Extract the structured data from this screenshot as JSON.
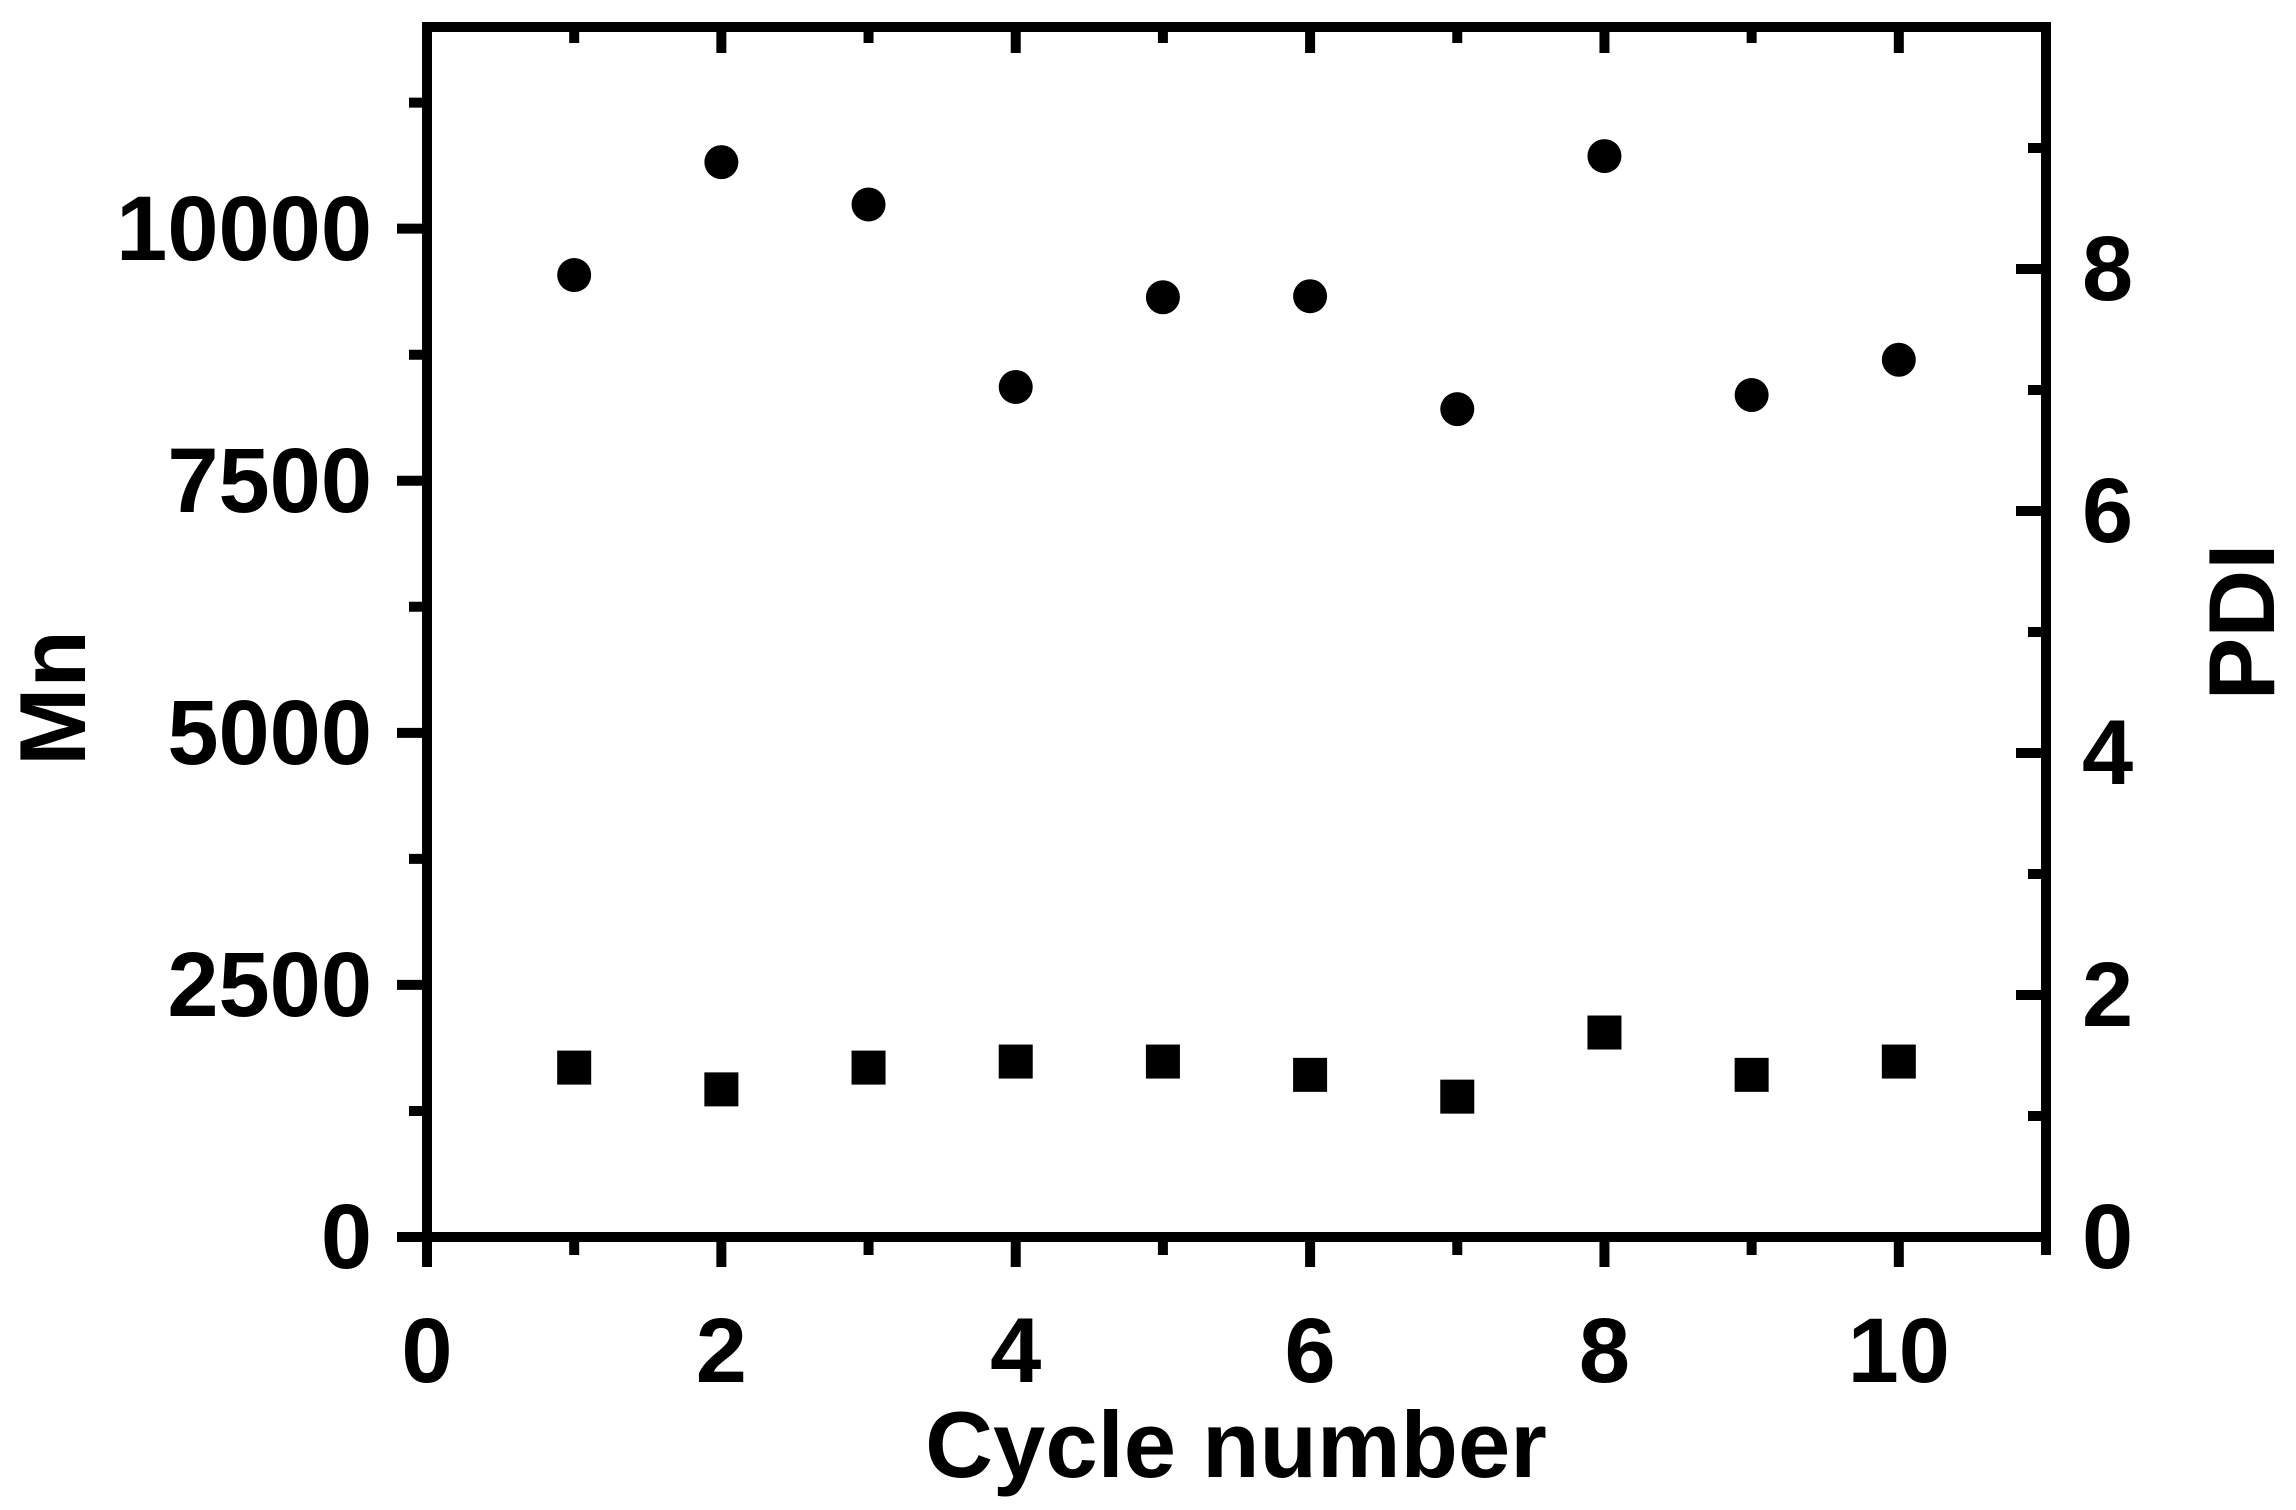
{
  "chart_data": {
    "type": "scatter",
    "title": "",
    "xlabel": "Cycle number",
    "ylabel_left": "Mn",
    "ylabel_right": "PDI",
    "grid": false,
    "legend": "none",
    "background_color": "#ffffff",
    "marker_color": "#000000",
    "axis_color": "#000000",
    "xlim": [
      0,
      11
    ],
    "ylim_left": [
      0,
      12000
    ],
    "ylim_right": [
      0,
      10
    ],
    "xticks_major": [
      0,
      2,
      4,
      6,
      8,
      10
    ],
    "xtick_labels": [
      "0",
      "2",
      "4",
      "6",
      "8",
      "10"
    ],
    "xticks_minor": [
      1,
      3,
      5,
      7,
      9,
      11
    ],
    "yticks_left_major": [
      0,
      2500,
      5000,
      7500,
      10000
    ],
    "ytick_labels_left": [
      "0",
      "2500",
      "5000",
      "7500",
      "10000"
    ],
    "yticks_left_minor": [
      1250,
      3750,
      6250,
      8750,
      11250
    ],
    "yticks_right_major": [
      0,
      2,
      4,
      6,
      8
    ],
    "ytick_labels_right": [
      "0",
      "2",
      "4",
      "6",
      "8"
    ],
    "yticks_right_minor": [
      1,
      3,
      5,
      7,
      9
    ],
    "x": [
      1,
      2,
      3,
      4,
      5,
      6,
      7,
      8,
      9,
      10
    ],
    "series": [
      {
        "name": "Mn",
        "axis": "left",
        "marker": "circle",
        "values": [
          9540,
          10660,
          10240,
          8430,
          9320,
          9330,
          8210,
          10720,
          8350,
          8700
        ]
      },
      {
        "name": "PDI",
        "axis": "right",
        "marker": "square",
        "values": [
          1.4,
          1.22,
          1.4,
          1.45,
          1.45,
          1.34,
          1.16,
          1.69,
          1.34,
          1.45
        ]
      }
    ]
  }
}
